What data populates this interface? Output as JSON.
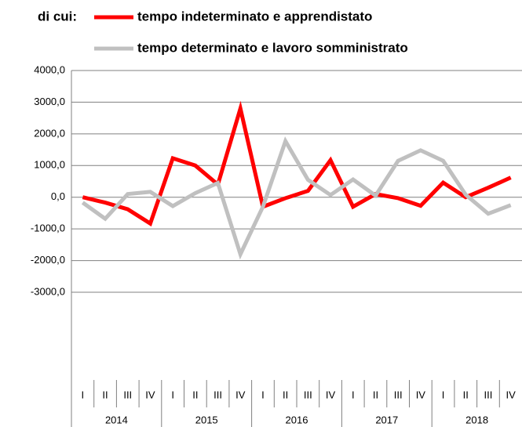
{
  "chart_data": {
    "type": "line",
    "legend_prefix": "di cui:",
    "categories": [
      "I",
      "II",
      "III",
      "IV",
      "I",
      "II",
      "III",
      "IV",
      "I",
      "II",
      "III",
      "IV",
      "I",
      "II",
      "III",
      "IV",
      "I",
      "II",
      "III",
      "IV"
    ],
    "year_labels": [
      "2014",
      "2015",
      "2016",
      "2017",
      "2018"
    ],
    "series": [
      {
        "name": "tempo indeterminato e apprendistato",
        "color": "#ff0000",
        "values": [
          0,
          -170,
          -380,
          -830,
          1230,
          1000,
          400,
          2800,
          -300,
          -30,
          200,
          1170,
          -300,
          100,
          -30,
          -270,
          460,
          0,
          300,
          620
        ]
      },
      {
        "name": "tempo determinato e lavoro somministrato",
        "color": "#c0c0c0",
        "values": [
          -170,
          -680,
          100,
          170,
          -280,
          130,
          450,
          -1800,
          -300,
          1770,
          550,
          70,
          560,
          50,
          1150,
          1480,
          1150,
          80,
          -520,
          -250
        ]
      }
    ],
    "ylim": [
      -3000,
      4000
    ],
    "yticks": [
      {
        "value": -3000,
        "label": "-3000,0"
      },
      {
        "value": -2000,
        "label": "-2000,0"
      },
      {
        "value": -1000,
        "label": "-1000,0"
      },
      {
        "value": 0,
        "label": "0,0"
      },
      {
        "value": 1000,
        "label": "1000,0"
      },
      {
        "value": 2000,
        "label": "2000,0"
      },
      {
        "value": 3000,
        "label": "3000,0"
      },
      {
        "value": 4000,
        "label": "4000,0"
      }
    ],
    "grid": true
  }
}
